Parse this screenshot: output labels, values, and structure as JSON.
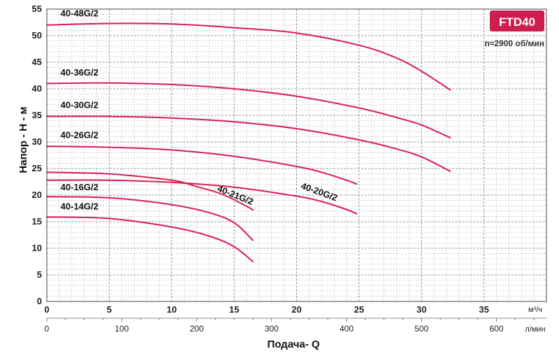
{
  "chart_data": {
    "type": "line",
    "badge": "FTD40",
    "speed_note": "n≈2900 об/мин",
    "ylabel": "Напор - H - м",
    "xlabel": "Подача- Q",
    "x_unit_top": "м³/ч",
    "x_unit_bottom": "л/мин",
    "ylim": [
      0,
      55
    ],
    "xlim": [
      0,
      40
    ],
    "y_ticks": [
      0,
      5,
      10,
      15,
      20,
      25,
      30,
      35,
      40,
      45,
      50,
      55
    ],
    "x_ticks_m3h": [
      0,
      5,
      10,
      15,
      20,
      25,
      30,
      35
    ],
    "x_ticks_lmin": [
      0,
      100,
      200,
      300,
      400,
      500,
      600
    ],
    "grid": true,
    "series": [
      {
        "name": "40-48G/2",
        "x": [
          0,
          5,
          10,
          15,
          20,
          25,
          28,
          30,
          32.3
        ],
        "y": [
          52,
          52.3,
          52.2,
          51.5,
          50.5,
          48.2,
          45.8,
          43.3,
          39.8
        ]
      },
      {
        "name": "40-36G/2",
        "x": [
          0,
          5,
          10,
          15,
          20,
          25,
          28,
          30,
          32.3
        ],
        "y": [
          41,
          41.1,
          40.8,
          40,
          38.6,
          36.4,
          34.6,
          33.2,
          30.8
        ]
      },
      {
        "name": "40-30G/2",
        "x": [
          0,
          5,
          10,
          15,
          20,
          25,
          28,
          30,
          32.3
        ],
        "y": [
          34.8,
          34.8,
          34.5,
          33.8,
          32.5,
          30.4,
          28.7,
          27.2,
          24.5
        ]
      },
      {
        "name": "40-26G/2",
        "x": [
          0,
          5,
          10,
          15,
          20,
          22,
          24,
          24.8
        ],
        "y": [
          29.2,
          29,
          28.5,
          27.3,
          25.4,
          24.3,
          22.8,
          22.1
        ]
      },
      {
        "name": "40-21G/2",
        "x": [
          0,
          5,
          10,
          12,
          14,
          16,
          16.5
        ],
        "y": [
          24.3,
          24,
          22.8,
          21.6,
          20.2,
          17.9,
          17.2
        ]
      },
      {
        "name": "40-20G/2",
        "x": [
          0,
          5,
          10,
          15,
          20,
          22,
          24,
          24.8
        ],
        "y": [
          22.8,
          22.8,
          22.4,
          21.5,
          19.8,
          18.8,
          17.3,
          16.5
        ]
      },
      {
        "name": "40-16G/2",
        "x": [
          0,
          5,
          10,
          13,
          15,
          16.5
        ],
        "y": [
          19.7,
          19.5,
          18.2,
          16.7,
          14.8,
          11.5
        ]
      },
      {
        "name": "40-14G/2",
        "x": [
          0,
          5,
          10,
          13,
          15,
          16.5
        ],
        "y": [
          15.9,
          15.6,
          14,
          12.3,
          10.3,
          7.5
        ]
      }
    ],
    "labels": [
      {
        "text": "40-48G/2",
        "x": 1.1,
        "y": 53.6,
        "rotate": 0
      },
      {
        "text": "40-36G/2",
        "x": 1.1,
        "y": 42.5,
        "rotate": 0
      },
      {
        "text": "40-30G/2",
        "x": 1.1,
        "y": 36.4,
        "rotate": 0
      },
      {
        "text": "40-26G/2",
        "x": 1.1,
        "y": 30.7,
        "rotate": 0
      },
      {
        "text": "40-21G/2",
        "x": 13.6,
        "y": 20.8,
        "rotate": 22
      },
      {
        "text": "40-20G/2",
        "x": 20.3,
        "y": 21.3,
        "rotate": 20
      },
      {
        "text": "40-16G/2",
        "x": 1.1,
        "y": 20.9,
        "rotate": 0
      },
      {
        "text": "40-14G/2",
        "x": 1.1,
        "y": 17.3,
        "rotate": 0
      }
    ],
    "colors": {
      "curve": "#dd1c50",
      "badge": "#cc1f4f",
      "grid_major": "#7a7a7a",
      "grid_minor": "#b8b8b8"
    }
  }
}
